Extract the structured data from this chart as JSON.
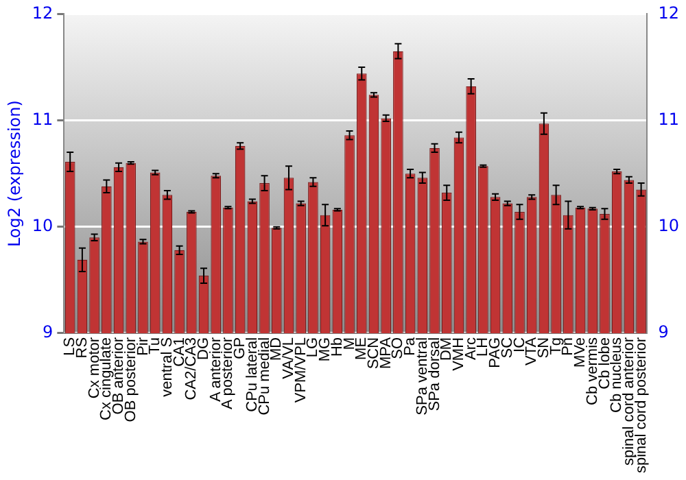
{
  "chart_data": {
    "type": "bar",
    "ylabel": "Log2 (expression)",
    "categories": [
      "LS",
      "RS",
      "Cx motor",
      "Cx cingulate",
      "OB anterior",
      "OB posterior",
      "Pir",
      "Tu",
      "ventral S",
      "CA1",
      "CA2/CA3",
      "DG",
      "A anterior",
      "A posterior",
      "GP",
      "CPu lateral",
      "CPu medial",
      "MD",
      "VA/VL",
      "VPM/VPL",
      "LG",
      "MG",
      "Hb",
      "M",
      "ME",
      "SCN",
      "MPA",
      "SO",
      "Pa",
      "SPa ventral",
      "SPa dorsal",
      "DM",
      "VMH",
      "Arc",
      "LH",
      "PAG",
      "SC",
      "IC",
      "VTA",
      "SN",
      "Tg",
      "Pn",
      "MVe",
      "Cb vermis",
      "Cb lobe",
      "Cb nucleus",
      "spinal cord anterior",
      "spinal cord posterior"
    ],
    "values": [
      10.61,
      9.69,
      9.9,
      10.38,
      10.56,
      10.6,
      9.86,
      10.51,
      10.3,
      9.78,
      10.14,
      9.54,
      10.48,
      10.18,
      10.76,
      10.24,
      10.41,
      9.99,
      10.46,
      10.22,
      10.42,
      10.11,
      10.16,
      10.86,
      11.44,
      11.24,
      11.02,
      11.65,
      10.5,
      10.46,
      10.74,
      10.32,
      10.84,
      11.32,
      10.57,
      10.28,
      10.22,
      10.14,
      10.28,
      10.97,
      10.3,
      10.11,
      10.18,
      10.17,
      10.12,
      10.52,
      10.44,
      10.35
    ],
    "errors": [
      0.09,
      0.11,
      0.03,
      0.06,
      0.04,
      0.01,
      0.02,
      0.02,
      0.04,
      0.04,
      0.01,
      0.07,
      0.02,
      0.01,
      0.03,
      0.02,
      0.07,
      0.01,
      0.11,
      0.02,
      0.04,
      0.1,
      0.01,
      0.04,
      0.06,
      0.02,
      0.03,
      0.07,
      0.04,
      0.05,
      0.04,
      0.07,
      0.05,
      0.07,
      0.01,
      0.03,
      0.02,
      0.07,
      0.02,
      0.1,
      0.09,
      0.13,
      0.01,
      0.01,
      0.05,
      0.02,
      0.03,
      0.06
    ],
    "color": "#c03434",
    "ylim": [
      9,
      12
    ],
    "yticks": [
      9,
      10,
      11,
      12
    ],
    "y2lim": [
      9,
      12
    ],
    "y2ticks": [
      9,
      10,
      11,
      12
    ],
    "grid": "y",
    "legend": false
  }
}
